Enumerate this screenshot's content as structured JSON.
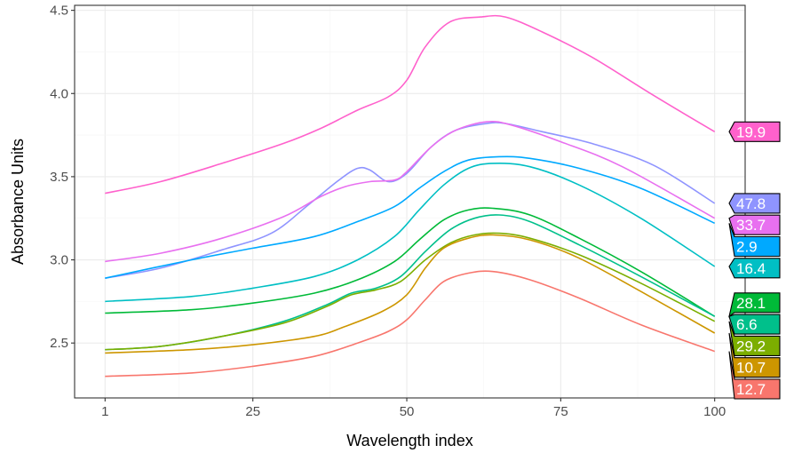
{
  "chart_data": {
    "type": "line",
    "title": "",
    "xlabel": "Wavelength index",
    "ylabel": "Absorbance Units",
    "xlim": [
      -3.95,
      104.95
    ],
    "ylim": [
      2.17,
      4.53
    ],
    "x_ticks": [
      1,
      25,
      50,
      75,
      100
    ],
    "x_tick_labels": [
      "1",
      "25",
      "50",
      "75",
      "100"
    ],
    "y_ticks": [
      2.5,
      3.0,
      3.5,
      4.0,
      4.5
    ],
    "y_tick_labels": [
      "2.5",
      "3.0",
      "3.5",
      "4.0",
      "4.5"
    ],
    "grid": true,
    "legend": "none; each series labelled at its right end",
    "series": [
      {
        "label": "19.9",
        "color": "#FF61CC",
        "points": [
          [
            1,
            3.4
          ],
          [
            10,
            3.47
          ],
          [
            20,
            3.58
          ],
          [
            30,
            3.7
          ],
          [
            36,
            3.79
          ],
          [
            42,
            3.9
          ],
          [
            47,
            3.98
          ],
          [
            50,
            4.08
          ],
          [
            53,
            4.28
          ],
          [
            57,
            4.43
          ],
          [
            62,
            4.46
          ],
          [
            66,
            4.46
          ],
          [
            72,
            4.37
          ],
          [
            80,
            4.22
          ],
          [
            90,
            3.99
          ],
          [
            100,
            3.77
          ]
        ]
      },
      {
        "label": "47.8",
        "color": "#8F94FF",
        "points": [
          [
            1,
            2.89
          ],
          [
            10,
            2.95
          ],
          [
            20,
            3.06
          ],
          [
            28,
            3.16
          ],
          [
            34,
            3.33
          ],
          [
            39,
            3.48
          ],
          [
            42,
            3.55
          ],
          [
            44,
            3.54
          ],
          [
            47,
            3.47
          ],
          [
            50,
            3.52
          ],
          [
            54,
            3.68
          ],
          [
            58,
            3.78
          ],
          [
            63,
            3.82
          ],
          [
            66,
            3.82
          ],
          [
            72,
            3.77
          ],
          [
            80,
            3.7
          ],
          [
            90,
            3.57
          ],
          [
            100,
            3.34
          ]
        ]
      },
      {
        "label": "33.7",
        "color": "#E870F0",
        "points": [
          [
            1,
            2.99
          ],
          [
            10,
            3.04
          ],
          [
            20,
            3.13
          ],
          [
            30,
            3.26
          ],
          [
            36,
            3.38
          ],
          [
            40,
            3.44
          ],
          [
            44,
            3.47
          ],
          [
            48,
            3.48
          ],
          [
            50,
            3.53
          ],
          [
            54,
            3.68
          ],
          [
            58,
            3.78
          ],
          [
            63,
            3.83
          ],
          [
            67,
            3.81
          ],
          [
            75,
            3.71
          ],
          [
            85,
            3.56
          ],
          [
            100,
            3.25
          ]
        ]
      },
      {
        "label": "2.9",
        "color": "#00A9FF",
        "points": [
          [
            1,
            2.89
          ],
          [
            15,
            3.0
          ],
          [
            25,
            3.07
          ],
          [
            35,
            3.14
          ],
          [
            42,
            3.23
          ],
          [
            48,
            3.32
          ],
          [
            52,
            3.43
          ],
          [
            56,
            3.53
          ],
          [
            60,
            3.6
          ],
          [
            65,
            3.62
          ],
          [
            70,
            3.61
          ],
          [
            78,
            3.55
          ],
          [
            88,
            3.43
          ],
          [
            100,
            3.22
          ]
        ]
      },
      {
        "label": "16.4",
        "color": "#00BFC4",
        "points": [
          [
            1,
            2.75
          ],
          [
            15,
            2.78
          ],
          [
            25,
            2.83
          ],
          [
            35,
            2.9
          ],
          [
            42,
            3.0
          ],
          [
            48,
            3.14
          ],
          [
            52,
            3.3
          ],
          [
            56,
            3.45
          ],
          [
            60,
            3.55
          ],
          [
            64,
            3.58
          ],
          [
            70,
            3.56
          ],
          [
            78,
            3.45
          ],
          [
            88,
            3.25
          ],
          [
            100,
            2.96
          ]
        ]
      },
      {
        "label": "28.1",
        "color": "#00BA38",
        "points": [
          [
            1,
            2.68
          ],
          [
            15,
            2.7
          ],
          [
            25,
            2.74
          ],
          [
            35,
            2.8
          ],
          [
            42,
            2.88
          ],
          [
            48,
            2.99
          ],
          [
            52,
            3.12
          ],
          [
            56,
            3.24
          ],
          [
            60,
            3.3
          ],
          [
            64,
            3.31
          ],
          [
            70,
            3.27
          ],
          [
            78,
            3.13
          ],
          [
            88,
            2.93
          ],
          [
            100,
            2.66
          ]
        ]
      },
      {
        "label": "6.6",
        "color": "#00C08B",
        "points": [
          [
            1,
            2.46
          ],
          [
            10,
            2.48
          ],
          [
            20,
            2.54
          ],
          [
            30,
            2.63
          ],
          [
            37,
            2.73
          ],
          [
            41,
            2.8
          ],
          [
            45,
            2.83
          ],
          [
            49,
            2.9
          ],
          [
            53,
            3.05
          ],
          [
            57,
            3.18
          ],
          [
            61,
            3.25
          ],
          [
            65,
            3.27
          ],
          [
            70,
            3.23
          ],
          [
            78,
            3.09
          ],
          [
            88,
            2.9
          ],
          [
            100,
            2.66
          ]
        ]
      },
      {
        "label": "29.2",
        "color": "#7CAE00",
        "points": [
          [
            1,
            2.46
          ],
          [
            10,
            2.48
          ],
          [
            20,
            2.54
          ],
          [
            30,
            2.62
          ],
          [
            37,
            2.72
          ],
          [
            41,
            2.79
          ],
          [
            45,
            2.82
          ],
          [
            49,
            2.87
          ],
          [
            53,
            3.0
          ],
          [
            57,
            3.1
          ],
          [
            61,
            3.15
          ],
          [
            65,
            3.16
          ],
          [
            70,
            3.13
          ],
          [
            78,
            3.03
          ],
          [
            88,
            2.86
          ],
          [
            100,
            2.63
          ]
        ]
      },
      {
        "label": "10.7",
        "color": "#CD9600",
        "points": [
          [
            1,
            2.44
          ],
          [
            15,
            2.46
          ],
          [
            25,
            2.49
          ],
          [
            35,
            2.54
          ],
          [
            40,
            2.6
          ],
          [
            46,
            2.69
          ],
          [
            50,
            2.79
          ],
          [
            53,
            2.95
          ],
          [
            56,
            3.07
          ],
          [
            60,
            3.13
          ],
          [
            64,
            3.15
          ],
          [
            70,
            3.12
          ],
          [
            78,
            3.01
          ],
          [
            88,
            2.81
          ],
          [
            100,
            2.56
          ]
        ]
      },
      {
        "label": "12.7",
        "color": "#F8766D",
        "points": [
          [
            1,
            2.3
          ],
          [
            15,
            2.32
          ],
          [
            25,
            2.36
          ],
          [
            35,
            2.42
          ],
          [
            42,
            2.5
          ],
          [
            47,
            2.57
          ],
          [
            50,
            2.64
          ],
          [
            53,
            2.76
          ],
          [
            56,
            2.87
          ],
          [
            60,
            2.92
          ],
          [
            64,
            2.93
          ],
          [
            70,
            2.88
          ],
          [
            78,
            2.77
          ],
          [
            88,
            2.61
          ],
          [
            100,
            2.45
          ]
        ]
      }
    ]
  }
}
